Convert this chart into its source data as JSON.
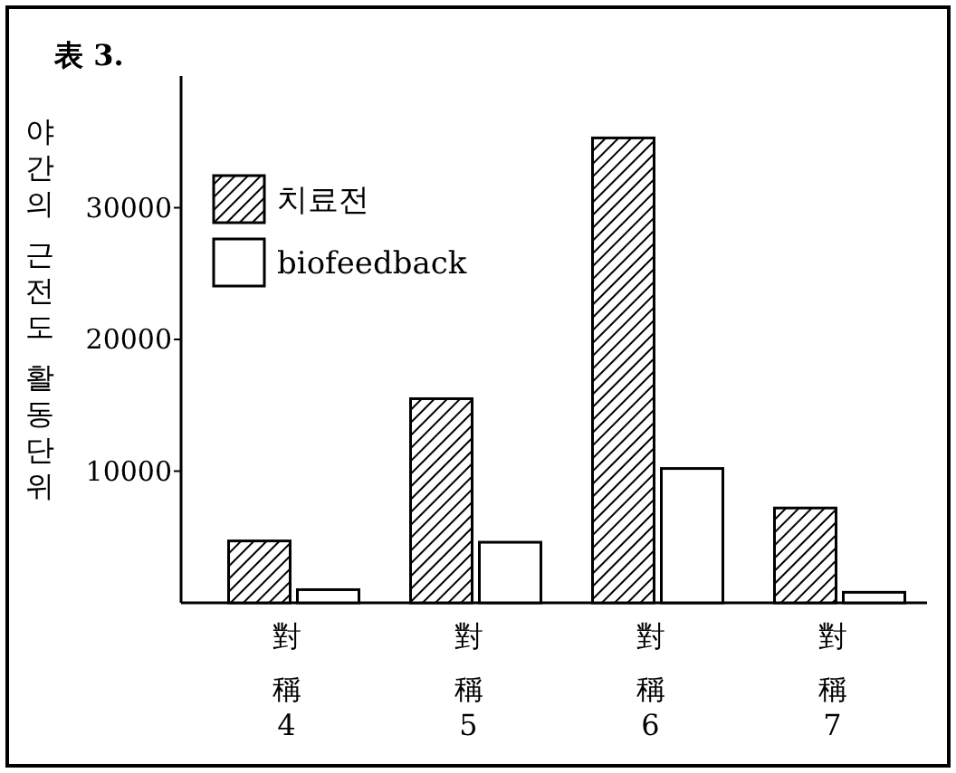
{
  "chart_data": {
    "type": "bar",
    "title": "表 3.",
    "ylabel": "야간의 근전도 활동단위",
    "categories": [
      "對稱4",
      "對稱5",
      "對稱6",
      "對稱7"
    ],
    "series": [
      {
        "name": "치료전",
        "color": "#000000",
        "values": [
          4700,
          15500,
          35300,
          7200
        ]
      },
      {
        "name": "biofeedback",
        "color": "#ffffff",
        "values": [
          1000,
          4600,
          10200,
          800
        ]
      }
    ],
    "ylim": [
      0,
      40000
    ],
    "yticks": [
      10000,
      20000,
      30000
    ],
    "legend": "top left",
    "grid": false
  }
}
